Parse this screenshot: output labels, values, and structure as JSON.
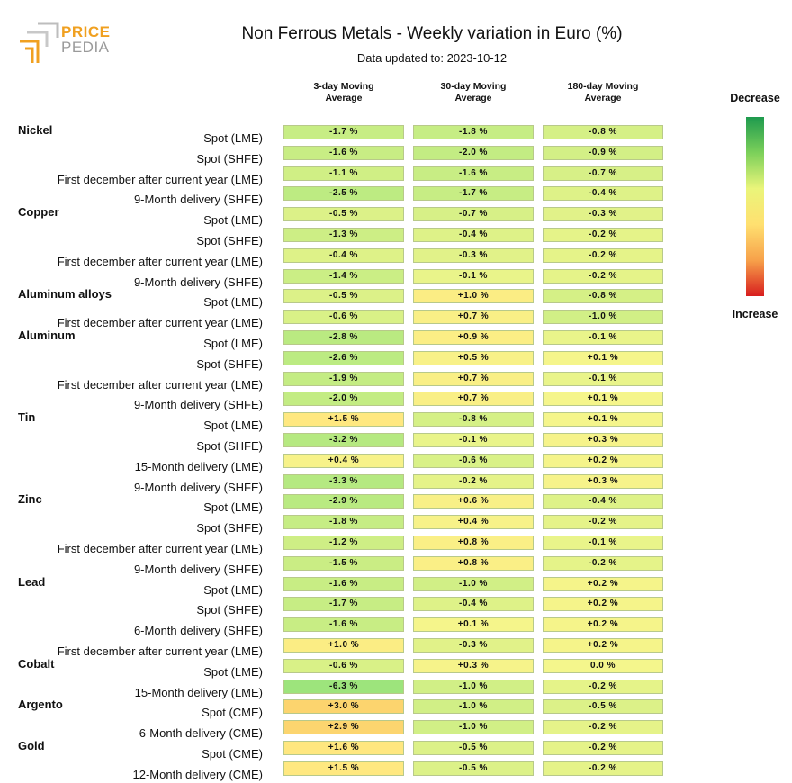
{
  "logo": {
    "line1": "PRICE",
    "line2": "PEDIA"
  },
  "title": "Non Ferrous Metals - Weekly variation in Euro (%)",
  "subtitle": "Data updated to: 2023-10-12",
  "legend": {
    "top": "Decrease",
    "bottom": "Increase",
    "colors": [
      "#1e9a4e",
      "#7cd05a",
      "#eaf57a",
      "#ffe070",
      "#f7a14a",
      "#d81e1e"
    ]
  },
  "columns": [
    "3-day Moving\nAverage",
    "30-day Moving\nAverage",
    "180-day Moving\nAverage"
  ],
  "chart_data": {
    "type": "table",
    "title": "Non Ferrous Metals - Weekly variation in Euro (%)",
    "columns": [
      "3-day Moving Average",
      "30-day Moving Average",
      "180-day Moving Average"
    ],
    "groups": [
      {
        "name": "Nickel",
        "rows": [
          {
            "label": "Spot (LME)",
            "values": [
              "-1.7 %",
              "-1.8 %",
              "-0.8 %"
            ]
          },
          {
            "label": "Spot (SHFE)",
            "values": [
              "-1.6 %",
              "-2.0 %",
              "-0.9 %"
            ]
          },
          {
            "label": "First december after current year (LME)",
            "values": [
              "-1.1 %",
              "-1.6 %",
              "-0.7 %"
            ]
          },
          {
            "label": "9-Month delivery (SHFE)",
            "values": [
              "-2.5 %",
              "-1.7 %",
              "-0.4 %"
            ]
          }
        ]
      },
      {
        "name": "Copper",
        "rows": [
          {
            "label": "Spot (LME)",
            "values": [
              "-0.5 %",
              "-0.7 %",
              "-0.3 %"
            ]
          },
          {
            "label": "Spot (SHFE)",
            "values": [
              "-1.3 %",
              "-0.4 %",
              "-0.2 %"
            ]
          },
          {
            "label": "First december after current year (LME)",
            "values": [
              "-0.4 %",
              "-0.3 %",
              "-0.2 %"
            ]
          },
          {
            "label": "9-Month delivery (SHFE)",
            "values": [
              "-1.4 %",
              "-0.1 %",
              "-0.2 %"
            ]
          }
        ]
      },
      {
        "name": "Aluminum alloys",
        "rows": [
          {
            "label": "Spot (LME)",
            "values": [
              "-0.5 %",
              "+1.0 %",
              "-0.8 %"
            ]
          },
          {
            "label": "First december after current year (LME)",
            "values": [
              "-0.6 %",
              "+0.7 %",
              "-1.0 %"
            ]
          }
        ]
      },
      {
        "name": "Aluminum",
        "rows": [
          {
            "label": "Spot (LME)",
            "values": [
              "-2.8 %",
              "+0.9 %",
              "-0.1 %"
            ]
          },
          {
            "label": "Spot (SHFE)",
            "values": [
              "-2.6 %",
              "+0.5 %",
              "+0.1 %"
            ]
          },
          {
            "label": "First december after current year (LME)",
            "values": [
              "-1.9 %",
              "+0.7 %",
              "-0.1 %"
            ]
          },
          {
            "label": "9-Month delivery (SHFE)",
            "values": [
              "-2.0 %",
              "+0.7 %",
              "+0.1 %"
            ]
          }
        ]
      },
      {
        "name": "Tin",
        "rows": [
          {
            "label": "Spot (LME)",
            "values": [
              "+1.5 %",
              "-0.8 %",
              "+0.1 %"
            ]
          },
          {
            "label": "Spot (SHFE)",
            "values": [
              "-3.2 %",
              "-0.1 %",
              "+0.3 %"
            ]
          },
          {
            "label": "15-Month delivery (LME)",
            "values": [
              "+0.4 %",
              "-0.6 %",
              "+0.2 %"
            ]
          },
          {
            "label": "9-Month delivery (SHFE)",
            "values": [
              "-3.3 %",
              "-0.2 %",
              "+0.3 %"
            ]
          }
        ]
      },
      {
        "name": "Zinc",
        "rows": [
          {
            "label": "Spot (LME)",
            "values": [
              "-2.9 %",
              "+0.6 %",
              "-0.4 %"
            ]
          },
          {
            "label": "Spot (SHFE)",
            "values": [
              "-1.8 %",
              "+0.4 %",
              "-0.2 %"
            ]
          },
          {
            "label": "First december after current year (LME)",
            "values": [
              "-1.2 %",
              "+0.8 %",
              "-0.1 %"
            ]
          },
          {
            "label": "9-Month delivery (SHFE)",
            "values": [
              "-1.5 %",
              "+0.8 %",
              "-0.2 %"
            ]
          }
        ]
      },
      {
        "name": "Lead",
        "rows": [
          {
            "label": "Spot (LME)",
            "values": [
              "-1.6 %",
              "-1.0 %",
              "+0.2 %"
            ]
          },
          {
            "label": "Spot (SHFE)",
            "values": [
              "-1.7 %",
              "-0.4 %",
              "+0.2 %"
            ]
          },
          {
            "label": "6-Month delivery (SHFE)",
            "values": [
              "-1.6 %",
              "+0.1 %",
              "+0.2 %"
            ]
          },
          {
            "label": "First december after current year (LME)",
            "values": [
              "+1.0 %",
              "-0.3 %",
              "+0.2 %"
            ]
          }
        ]
      },
      {
        "name": "Cobalt",
        "rows": [
          {
            "label": "Spot (LME)",
            "values": [
              "-0.6 %",
              "+0.3 %",
              "0.0 %"
            ]
          },
          {
            "label": "15-Month delivery (LME)",
            "values": [
              "-6.3 %",
              "-1.0 %",
              "-0.2 %"
            ]
          }
        ]
      },
      {
        "name": "Argento",
        "rows": [
          {
            "label": "Spot (CME)",
            "values": [
              "+3.0 %",
              "-1.0 %",
              "-0.5 %"
            ]
          },
          {
            "label": "6-Month delivery (CME)",
            "values": [
              "+2.9 %",
              "-1.0 %",
              "-0.2 %"
            ]
          }
        ]
      },
      {
        "name": "Gold",
        "rows": [
          {
            "label": "Spot (CME)",
            "values": [
              "+1.6 %",
              "-0.5 %",
              "-0.2 %"
            ]
          },
          {
            "label": "12-Month delivery (CME)",
            "values": [
              "+1.5 %",
              "-0.5 %",
              "-0.2 %"
            ]
          }
        ]
      }
    ]
  }
}
